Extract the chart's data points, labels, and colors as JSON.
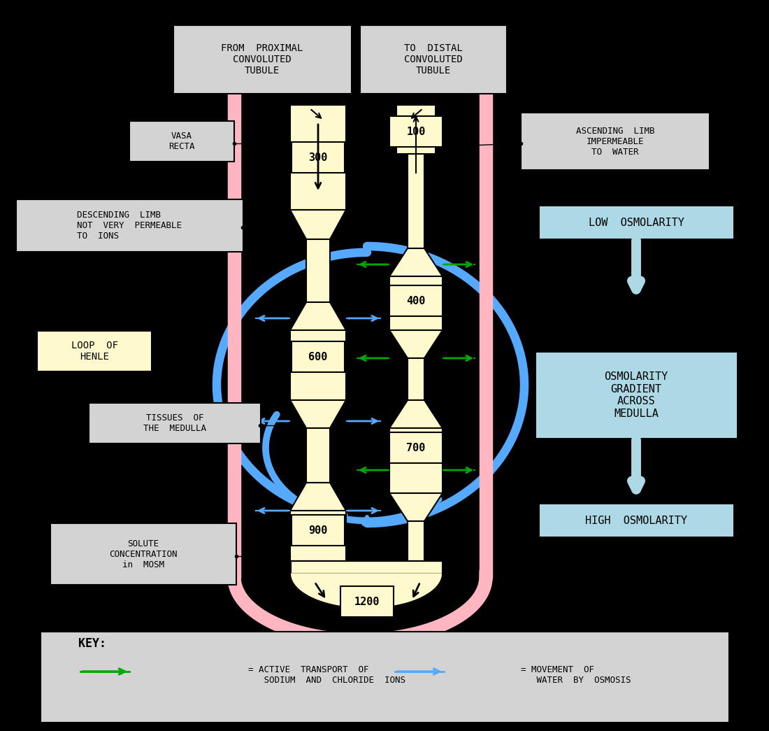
{
  "bg_color": "#000000",
  "fig_width": 11.0,
  "fig_height": 10.45,
  "vasa_recta_color": "#ffb6c1",
  "loop_color": "#fffacd",
  "label_bg_gray": "#d3d3d3",
  "label_bg_yellow": "#fffacd",
  "label_bg_cyan": "#add8e6",
  "green_arrow": "#00aa00",
  "blue_arrow": "#55aaff",
  "text_labels": {
    "from_proximal": "FROM  PROXIMAL\nCONVOLUTED\nTUBULE",
    "to_distal": "TO  DISTAL\nCONVOLUTED\nTUBULE",
    "vasa_recta": "VASA\nRECTA",
    "ascending_limb": "ASCENDING  LIMB\nIMPERMEABLE\nTO  WATER",
    "descending_limb": "DESCENDING  LIMB\nNOT  VERY  PERMEABLE\nTO  IONS",
    "loop_of_henle": "LOOP  OF\nHENLE",
    "tissues_medulla": "TISSUES  OF\nTHE  MEDULLA",
    "solute_conc": "SOLUTE\nCONCENTRATION\nin  MOSM",
    "low_osmolarity": "LOW  OSMOLARITY",
    "osmolarity_gradient": "OSMOLARITY\nGRADIENT\nACROSS\nMEDULLA",
    "high_osmolarity": "HIGH  OSMOLARITY",
    "key_title": "KEY:",
    "key_green": "= ACTIVE  TRANSPORT  OF\n   SODIUM  AND  CHLORIDE  IONS",
    "key_blue": "= MOVEMENT  OF\n   WATER  BY  OSMOSIS"
  }
}
